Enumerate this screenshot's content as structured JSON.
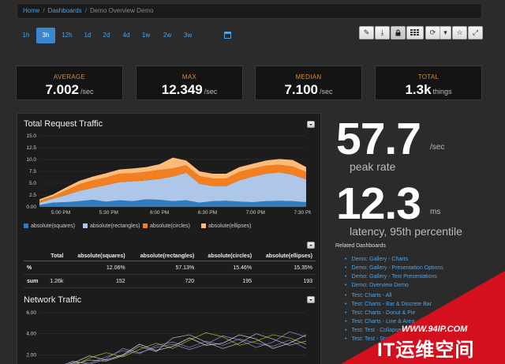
{
  "breadcrumb": {
    "home": "Home",
    "dashboards": "Dashboards",
    "current": "Demo Overview Demo"
  },
  "timeranges": [
    "1h",
    "3h",
    "12h",
    "1d",
    "2d",
    "4d",
    "1w",
    "2w",
    "3w"
  ],
  "active_timerange": "3h",
  "toolbar": [
    "edit-icon",
    "download-icon",
    "lock-icon",
    "grid-icon",
    "refresh-icon",
    "caret-icon",
    "star-icon",
    "expand-icon"
  ],
  "stats": [
    {
      "label": "AVERAGE",
      "value": "7.002",
      "unit": "/sec"
    },
    {
      "label": "MAX",
      "value": "12.349",
      "unit": "/sec"
    },
    {
      "label": "MEDIAN",
      "value": "7.100",
      "unit": "/sec"
    },
    {
      "label": "TOTAL",
      "value": "1.3k",
      "unit": "things"
    }
  ],
  "colors": {
    "squares": "#2e7bc0",
    "rectangles": "#aec7e8",
    "circles": "#f47f20",
    "ellipses": "#ffbb78",
    "accent": "#3a86d0",
    "stat_label": "#d4893a"
  },
  "traffic": {
    "title": "Total Request Traffic",
    "legend": [
      "absolute(squares)",
      "absolute(rectangles)",
      "absolute(circles)",
      "absolute(ellipses)"
    ]
  },
  "table": {
    "headers": [
      "Total",
      "absolute(squares)",
      "absolute(rectangles)",
      "absolute(circles)",
      "absolute(ellipses)"
    ],
    "rows": [
      {
        "label": "%",
        "cells": [
          "",
          "12.06%",
          "57.13%",
          "15.46%",
          "15.35%"
        ]
      },
      {
        "label": "sum",
        "cells": [
          "1.26k",
          "152",
          "720",
          "195",
          "193"
        ]
      }
    ]
  },
  "network": {
    "title": "Network Traffic"
  },
  "chart_data": [
    {
      "type": "area",
      "title": "Total Request Traffic",
      "stacked": true,
      "ylim": [
        0,
        15
      ],
      "yticks": [
        "0.00",
        "2.5",
        "5.0",
        "7.5",
        "10.0",
        "12.5",
        "15.0"
      ],
      "xticks": [
        "5:00 PM",
        "5:30 PM",
        "6:00 PM",
        "6:30 PM",
        "7:00 PM",
        "7:30 PM"
      ],
      "x": [
        0,
        0.05,
        0.1,
        0.15,
        0.2,
        0.25,
        0.3,
        0.35,
        0.4,
        0.45,
        0.5,
        0.55,
        0.6,
        0.65,
        0.7,
        0.75,
        0.8,
        0.85,
        0.9,
        0.95,
        1.0
      ],
      "series": [
        {
          "name": "absolute(squares)",
          "values": [
            0.4,
            0.9,
            1.0,
            1.2,
            1.5,
            1.1,
            1.4,
            1.2,
            1.6,
            1.5,
            1.2,
            1.4,
            0.9,
            1.2,
            1.3,
            1.1,
            1.0,
            1.2,
            1.3,
            1.2,
            1.0
          ]
        },
        {
          "name": "absolute(rectangles)",
          "values": [
            0.5,
            0.8,
            1.5,
            2.2,
            2.5,
            3.5,
            3.8,
            4.2,
            4.0,
            4.4,
            5.2,
            5.8,
            4.0,
            3.2,
            3.1,
            4.5,
            5.4,
            5.8,
            6.0,
            5.6,
            4.8
          ]
        },
        {
          "name": "absolute(circles)",
          "values": [
            0.4,
            0.5,
            1.0,
            1.4,
            1.6,
            1.6,
            1.8,
            1.7,
            1.8,
            1.9,
            1.7,
            1.6,
            1.6,
            1.6,
            1.6,
            1.8,
            1.7,
            1.7,
            1.6,
            1.7,
            1.6
          ]
        },
        {
          "name": "absolute(ellipses)",
          "values": [
            0.3,
            0.4,
            0.6,
            0.7,
            0.8,
            0.9,
            0.9,
            1.0,
            1.0,
            1.2,
            2.3,
            1.0,
            1.0,
            1.0,
            1.0,
            1.0,
            1.0,
            1.1,
            1.2,
            1.4,
            1.0
          ]
        }
      ]
    },
    {
      "type": "line",
      "title": "Network Traffic",
      "ylim": [
        0,
        6
      ],
      "yticks": [
        "2.00",
        "4.00",
        "6.00"
      ],
      "series": [
        {
          "values": [
            0.5,
            0.9,
            1.3,
            1.2,
            1.8,
            2.4,
            2.1,
            2.9,
            3.2,
            2.7,
            3.3,
            2.9,
            3.5,
            3.1,
            2.8,
            3.4,
            2.6
          ]
        },
        {
          "values": [
            0.4,
            0.6,
            1.1,
            1.5,
            1.4,
            1.9,
            2.8,
            2.3,
            3.6,
            3.9,
            3.2,
            2.6,
            3.1,
            4.0,
            3.5,
            2.9,
            3.3
          ]
        },
        {
          "values": [
            0.6,
            1.0,
            0.9,
            1.7,
            2.2,
            1.8,
            2.5,
            3.1,
            2.6,
            3.4,
            4.1,
            3.7,
            2.9,
            3.3,
            3.9,
            3.6,
            3.0
          ]
        },
        {
          "values": [
            0.3,
            0.7,
            1.4,
            1.1,
            1.6,
            2.6,
            2.2,
            2.7,
            3.0,
            2.5,
            3.0,
            3.8,
            3.4,
            2.7,
            3.2,
            4.2,
            3.7
          ]
        },
        {
          "values": [
            0.5,
            0.8,
            1.2,
            1.9,
            1.5,
            2.0,
            3.0,
            2.4,
            2.8,
            3.6,
            2.9,
            3.1,
            3.9,
            3.5,
            2.6,
            3.1,
            3.9
          ]
        }
      ]
    }
  ],
  "big1": {
    "value": "57.7",
    "unit": "/sec",
    "label": "peak rate"
  },
  "big2": {
    "value": "12.3",
    "unit": "ms",
    "label": "latency, 95th percentile"
  },
  "related": {
    "title": "Related Dashboards",
    "group1": [
      "Demo: Gallery - Charts",
      "Demo: Gallery - Presentation Options",
      "Demo: Gallery - Text Presentations",
      "Demo: Overview Demo"
    ],
    "group2": [
      "Test: Charts - All",
      "Test: Charts - Bar & Discrete Bar",
      "Test: Charts - Donut & Pie",
      "Test: Charts - Line & Area",
      "Test: Test - Collapsed",
      "Test: Test - Stats"
    ]
  },
  "watermark": {
    "url": "WWW.94IP.COM",
    "text": "IT运维空间"
  }
}
